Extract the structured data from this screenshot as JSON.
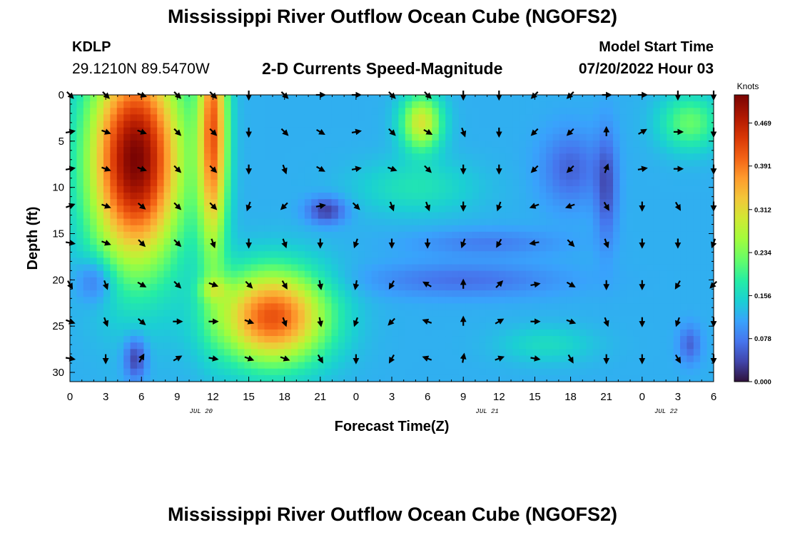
{
  "header": {
    "title": "Mississippi River Outflow Ocean Cube (NGOFS2)",
    "station_id": "KDLP",
    "station_coords": "29.1210N  89.5470W",
    "plot_title": "2-D Currents Speed-Magnitude",
    "model_start_label": "Model Start Time",
    "model_start_value": "07/20/2022 Hour 03"
  },
  "footer": {
    "title": "Mississippi River Outflow Ocean Cube (NGOFS2)"
  },
  "chart_data": {
    "type": "heatmap",
    "xlabel": "Forecast Time(Z)",
    "ylabel": "Depth (ft)",
    "x_range_hours": [
      0,
      54
    ],
    "ylim": [
      31,
      0
    ],
    "x_ticks": [
      {
        "hour": 0,
        "label": "0"
      },
      {
        "hour": 3,
        "label": "3"
      },
      {
        "hour": 6,
        "label": "6"
      },
      {
        "hour": 9,
        "label": "9"
      },
      {
        "hour": 12,
        "label": "12"
      },
      {
        "hour": 15,
        "label": "15"
      },
      {
        "hour": 18,
        "label": "18"
      },
      {
        "hour": 21,
        "label": "21"
      },
      {
        "hour": 24,
        "label": "0"
      },
      {
        "hour": 27,
        "label": "3"
      },
      {
        "hour": 30,
        "label": "6"
      },
      {
        "hour": 33,
        "label": "9"
      },
      {
        "hour": 36,
        "label": "12"
      },
      {
        "hour": 39,
        "label": "15"
      },
      {
        "hour": 42,
        "label": "18"
      },
      {
        "hour": 45,
        "label": "21"
      },
      {
        "hour": 48,
        "label": "0"
      },
      {
        "hour": 51,
        "label": "3"
      },
      {
        "hour": 54,
        "label": "6"
      }
    ],
    "y_ticks": [
      0,
      5,
      10,
      15,
      20,
      25,
      30
    ],
    "date_labels": [
      {
        "hour": 11,
        "label": "JUL 20"
      },
      {
        "hour": 35,
        "label": "JUL 21"
      },
      {
        "hour": 50,
        "label": "JUL 22"
      }
    ],
    "colorbar": {
      "unit": "Knots",
      "min": 0,
      "max": 0.52,
      "ticks": [
        "0.000",
        "0.078",
        "0.156",
        "0.234",
        "0.312",
        "0.391",
        "0.469"
      ]
    },
    "arrow_times_hours": [
      0,
      3,
      6,
      9,
      12,
      15,
      18,
      21,
      24,
      27,
      30,
      33,
      36,
      39,
      42,
      45,
      48,
      51,
      54
    ],
    "arrow_depths_ft": [
      0,
      4,
      8,
      12,
      16,
      20.5,
      24.5,
      28.5
    ],
    "direction_deg_cw_from_north": [
      [
        135,
        135,
        110,
        135,
        135,
        180,
        135,
        90,
        90,
        135,
        135,
        180,
        180,
        225,
        225,
        90,
        90,
        180,
        180
      ],
      [
        80,
        110,
        110,
        135,
        135,
        180,
        135,
        120,
        80,
        135,
        120,
        160,
        180,
        225,
        225,
        0,
        60,
        90,
        180
      ],
      [
        80,
        110,
        110,
        135,
        135,
        180,
        160,
        120,
        80,
        110,
        135,
        180,
        180,
        225,
        225,
        20,
        80,
        90,
        180
      ],
      [
        70,
        110,
        130,
        135,
        135,
        200,
        225,
        80,
        135,
        160,
        160,
        180,
        200,
        250,
        250,
        150,
        180,
        150,
        180
      ],
      [
        100,
        110,
        135,
        135,
        160,
        180,
        160,
        180,
        200,
        180,
        180,
        200,
        210,
        260,
        135,
        160,
        180,
        180,
        200
      ],
      [
        150,
        160,
        120,
        135,
        110,
        135,
        150,
        170,
        190,
        210,
        300,
        0,
        45,
        80,
        120,
        180,
        180,
        210,
        225
      ],
      [
        110,
        160,
        130,
        90,
        90,
        110,
        160,
        170,
        200,
        225,
        290,
        0,
        60,
        90,
        110,
        160,
        180,
        200,
        180
      ],
      [
        100,
        180,
        30,
        60,
        100,
        110,
        110,
        150,
        180,
        210,
        290,
        10,
        70,
        100,
        150,
        180,
        180,
        150,
        180
      ]
    ]
  }
}
